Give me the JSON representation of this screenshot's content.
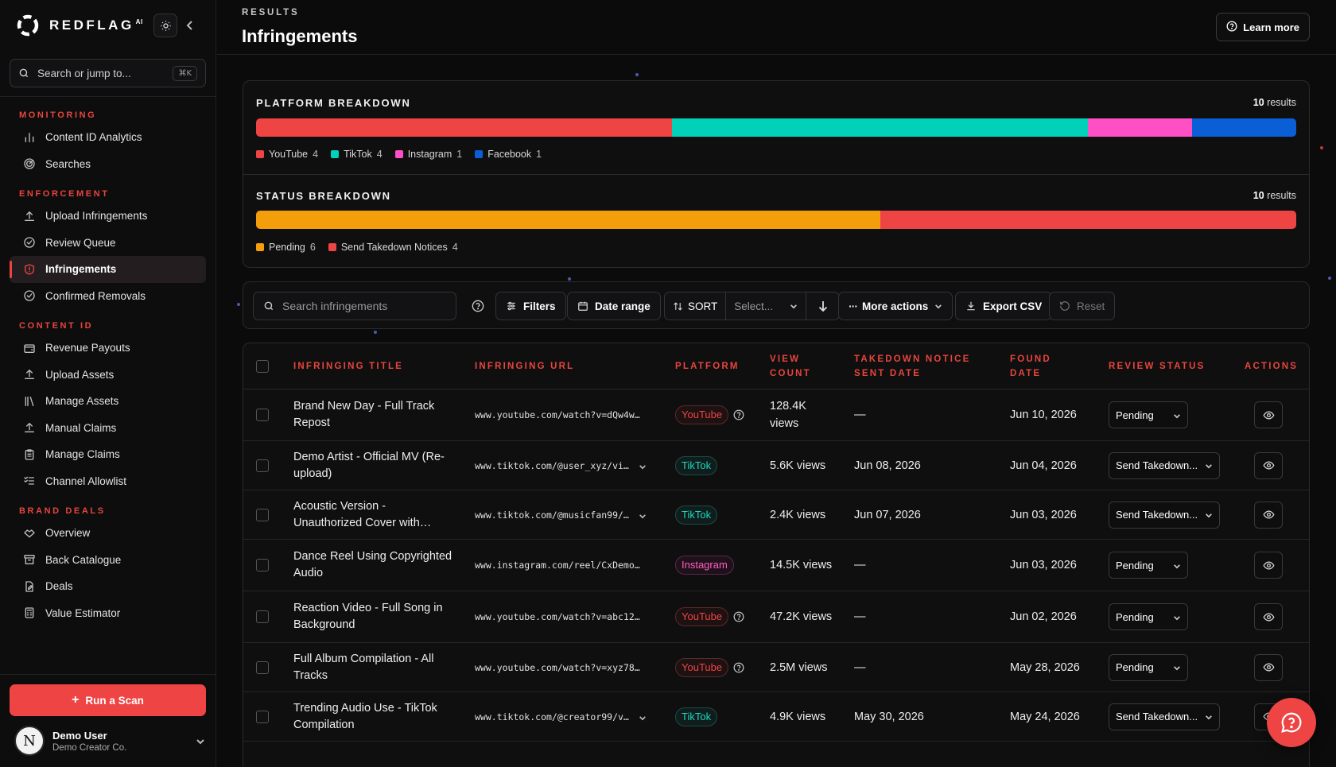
{
  "brand": {
    "name": "REDFLAG",
    "sup": "AI"
  },
  "sidebar": {
    "search_placeholder": "Search or jump to...",
    "search_shortcut": "⌘K",
    "sections": [
      {
        "label": "MONITORING",
        "items": [
          {
            "label": "Content ID Analytics",
            "icon": "bar-chart-icon"
          },
          {
            "label": "Searches",
            "icon": "radar-icon"
          }
        ]
      },
      {
        "label": "ENFORCEMENT",
        "items": [
          {
            "label": "Upload Infringements",
            "icon": "upload-icon"
          },
          {
            "label": "Review Queue",
            "icon": "check-circle-icon"
          },
          {
            "label": "Infringements",
            "icon": "shield-alert-icon",
            "active": true
          },
          {
            "label": "Confirmed Removals",
            "icon": "check-circle-icon"
          }
        ]
      },
      {
        "label": "CONTENT ID",
        "items": [
          {
            "label": "Revenue Payouts",
            "icon": "wallet-icon"
          },
          {
            "label": "Upload Assets",
            "icon": "upload-icon"
          },
          {
            "label": "Manage Assets",
            "icon": "library-icon"
          },
          {
            "label": "Manual Claims",
            "icon": "upload-icon"
          },
          {
            "label": "Manage Claims",
            "icon": "clipboard-icon"
          },
          {
            "label": "Channel Allowlist",
            "icon": "list-check-icon"
          }
        ]
      },
      {
        "label": "BRAND DEALS",
        "items": [
          {
            "label": "Overview",
            "icon": "handshake-icon"
          },
          {
            "label": "Back Catalogue",
            "icon": "archive-icon"
          },
          {
            "label": "Deals",
            "icon": "file-edit-icon"
          },
          {
            "label": "Value Estimator",
            "icon": "calculator-icon"
          }
        ]
      }
    ],
    "run_scan": "Run a Scan",
    "user": {
      "name": "Demo User",
      "org": "Demo Creator Co.",
      "initial": "N"
    }
  },
  "header": {
    "eyebrow": "RESULTS",
    "title": "Infringements",
    "learn_more": "Learn more"
  },
  "platform_breakdown": {
    "title": "PLATFORM BREAKDOWN",
    "count": "10",
    "count_suffix": "results",
    "segments": [
      {
        "label": "YouTube",
        "value": 4,
        "color": "#ef4444"
      },
      {
        "label": "TikTok",
        "value": 4,
        "color": "#00d1b8"
      },
      {
        "label": "Instagram",
        "value": 1,
        "color": "#ff4fc4"
      },
      {
        "label": "Facebook",
        "value": 1,
        "color": "#0b5fd6"
      }
    ]
  },
  "status_breakdown": {
    "title": "STATUS BREAKDOWN",
    "count": "10",
    "count_suffix": "results",
    "segments": [
      {
        "label": "Pending",
        "value": 6,
        "color": "#f59e0b"
      },
      {
        "label": "Send Takedown Notices",
        "value": 4,
        "color": "#ef4444"
      }
    ]
  },
  "toolbar": {
    "search_placeholder": "Search infringements",
    "filters": "Filters",
    "date_range": "Date range",
    "sort": "SORT",
    "sort_select": "Select...",
    "more_actions": "More actions",
    "export_csv": "Export CSV",
    "reset": "Reset"
  },
  "table": {
    "headers": {
      "title": "INFRINGING TITLE",
      "url": "INFRINGING URL",
      "platform": "PLATFORM",
      "views_1": "VIEW",
      "views_2": "COUNT",
      "takedown_1": "TAKEDOWN NOTICE",
      "takedown_2": "SENT DATE",
      "found_1": "FOUND",
      "found_2": "DATE",
      "status": "REVIEW STATUS",
      "actions": "ACTIONS"
    },
    "rows": [
      {
        "title": "Brand New Day - Full Track Repost",
        "url": "www.youtube.com/watch?v=dQw4w…",
        "platform": "YouTube",
        "views": "128.4K views",
        "takedown": "—",
        "found": "Jun 10, 2026",
        "status": "Pending"
      },
      {
        "title": "Demo Artist - Official MV (Re-upload)",
        "url": "www.tiktok.com/@user_xyz/vi…",
        "platform": "TikTok",
        "views": "5.6K views",
        "takedown": "Jun 08, 2026",
        "found": "Jun 04, 2026",
        "status": "Send Takedown..."
      },
      {
        "title": "Acoustic Version - Unauthorized Cover with…",
        "url": "www.tiktok.com/@musicfan99/…",
        "platform": "TikTok",
        "views": "2.4K views",
        "takedown": "Jun 07, 2026",
        "found": "Jun 03, 2026",
        "status": "Send Takedown..."
      },
      {
        "title": "Dance Reel Using Copyrighted Audio",
        "url": "www.instagram.com/reel/CxDemo…",
        "platform": "Instagram",
        "views": "14.5K views",
        "takedown": "—",
        "found": "Jun 03, 2026",
        "status": "Pending"
      },
      {
        "title": "Reaction Video - Full Song in Background",
        "url": "www.youtube.com/watch?v=abc12…",
        "platform": "YouTube",
        "views": "47.2K views",
        "takedown": "—",
        "found": "Jun 02, 2026",
        "status": "Pending"
      },
      {
        "title": "Full Album Compilation - All Tracks",
        "url": "www.youtube.com/watch?v=xyz78…",
        "platform": "YouTube",
        "views": "2.5M views",
        "takedown": "—",
        "found": "May 28, 2026",
        "status": "Pending"
      },
      {
        "title": "Trending Audio Use - TikTok Compilation",
        "url": "www.tiktok.com/@creator99/v…",
        "platform": "TikTok",
        "views": "4.9K views",
        "takedown": "May 30, 2026",
        "found": "May 24, 2026",
        "status": "Send Takedown..."
      }
    ]
  }
}
